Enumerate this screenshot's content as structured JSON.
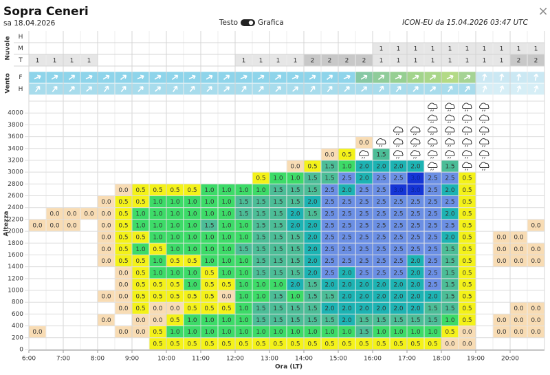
{
  "header": {
    "title": "Sopra Ceneri",
    "date": "sa 18.04.2026",
    "toggle_left": "Testo",
    "toggle_right": "Grafica",
    "source": "ICON-EU da 15.04.2026 03:47 UTC",
    "close": "×"
  },
  "clouds": {
    "label": "Nuvole",
    "colors": [
      "#ffffff",
      "#e6e6e6",
      "#c8c8c8"
    ],
    "rows": [
      {
        "name": "H",
        "values": [
          null,
          null,
          null,
          null,
          null,
          null,
          null,
          null,
          null,
          null,
          null,
          null,
          null,
          null,
          null,
          null,
          null,
          null,
          null,
          null,
          null,
          null,
          null,
          null,
          null,
          null,
          null,
          null,
          null,
          null
        ]
      },
      {
        "name": "M",
        "values": [
          null,
          null,
          null,
          null,
          null,
          null,
          null,
          null,
          null,
          null,
          null,
          null,
          null,
          null,
          null,
          null,
          null,
          null,
          null,
          null,
          1,
          1,
          1,
          1,
          1,
          1,
          1,
          1,
          1,
          1
        ]
      },
      {
        "name": "T",
        "values": [
          1,
          1,
          1,
          1,
          null,
          null,
          null,
          null,
          null,
          null,
          null,
          null,
          1,
          1,
          1,
          1,
          2,
          2,
          2,
          2,
          1,
          1,
          1,
          1,
          1,
          1,
          1,
          1,
          2,
          2
        ]
      }
    ]
  },
  "wind": {
    "label": "Vento",
    "rows": [
      {
        "name": "F"
      },
      {
        "name": "H"
      }
    ]
  },
  "grid": {
    "y_label": "Altezza",
    "x_label": "Ora (LT)",
    "ylim": [
      0,
      4200
    ],
    "yticks": [
      0,
      200,
      400,
      600,
      800,
      1000,
      1200,
      1400,
      1600,
      1800,
      2000,
      2200,
      2400,
      2600,
      2800,
      3000,
      3200,
      3400,
      3600,
      3800,
      4000
    ],
    "xticks": [
      "6:00",
      "7:00",
      "8:00",
      "9:00",
      "10:00",
      "11:00",
      "12:00",
      "13:00",
      "14:00",
      "15:00",
      "16:00",
      "17:00",
      "18:00",
      "19:00",
      "20:00"
    ],
    "colors": [
      "#f8dcb4",
      "#f4f219",
      "#3ddb68",
      "#4cbd97",
      "#1db3b3",
      "#6b8fe4",
      "#1535d6"
    ],
    "rows": [
      [
        null,
        null,
        null,
        null,
        null,
        null,
        null,
        "0.5",
        "0.5",
        "0.5",
        "0.5",
        "0.5",
        "0.5",
        "0.5",
        "0.5",
        "0.5",
        "0.5",
        "0.5",
        "0.5",
        "0.5",
        "0.5",
        "0.5",
        "0.5",
        "0.5",
        "0.0",
        "0.0",
        null,
        null,
        null,
        null
      ],
      [
        "0.0",
        null,
        null,
        null,
        null,
        "0.0",
        "0.0",
        "0.5",
        "1.0",
        "1.0",
        "1.0",
        "1.0",
        "1.0",
        "1.0",
        "1.0",
        "1.0",
        "1.0",
        "1.0",
        "1.0",
        "1.5",
        "1.0",
        "1.0",
        "1.0",
        "1.0",
        "0.5",
        "0.0",
        null,
        "0.0",
        "0.0",
        "0.0"
      ],
      [
        null,
        null,
        null,
        null,
        "0.0",
        null,
        "0.0",
        "0.0",
        "0.5",
        "1.0",
        "1.0",
        "1.0",
        "1.0",
        "1.5",
        "1.5",
        "1.5",
        "1.5",
        "1.5",
        "2.0",
        "1.5",
        "1.5",
        "1.5",
        "1.5",
        "1.5",
        "1.0",
        "0.5",
        null,
        "0.0",
        "0.0",
        "0.0"
      ],
      [
        null,
        null,
        null,
        null,
        null,
        "0.0",
        "0.5",
        "0.0",
        "0.0",
        "0.5",
        "0.5",
        "0.5",
        "1.0",
        "1.5",
        "1.5",
        "1.5",
        "1.5",
        "2.0",
        "2.0",
        "2.0",
        "2.0",
        "2.0",
        "2.0",
        "1.5",
        "1.5",
        "0.5",
        null,
        null,
        "0.0",
        "0.0"
      ],
      [
        null,
        null,
        null,
        null,
        "0.0",
        "0.0",
        "0.5",
        "0.5",
        "0.5",
        "0.5",
        "0.5",
        "0.0",
        "1.0",
        "1.0",
        "1.5",
        "1.0",
        "1.5",
        "1.5",
        "2.0",
        "2.0",
        "2.0",
        "2.0",
        "2.0",
        "2.0",
        "1.5",
        "0.5",
        null,
        null,
        null,
        null
      ],
      [
        null,
        null,
        null,
        null,
        null,
        "0.0",
        "0.5",
        "0.5",
        "0.5",
        "1.0",
        "0.5",
        "0.5",
        "1.0",
        "1.0",
        "1.0",
        "2.0",
        "1.5",
        "2.0",
        "2.0",
        "2.0",
        "2.0",
        "2.0",
        "2.0",
        "2.5",
        "1.5",
        "0.5",
        null,
        null,
        null,
        null
      ],
      [
        null,
        null,
        null,
        null,
        null,
        "0.0",
        "0.5",
        "1.0",
        "1.0",
        "1.0",
        "0.5",
        "1.0",
        "1.0",
        "1.5",
        "1.5",
        "1.5",
        "2.0",
        "2.5",
        "2.0",
        "2.5",
        "2.5",
        "2.5",
        "2.0",
        "2.5",
        "1.5",
        "0.5",
        null,
        null,
        null,
        null
      ],
      [
        null,
        null,
        null,
        null,
        "0.0",
        "0.5",
        "0.5",
        "1.0",
        "0.5",
        "0.5",
        "1.0",
        "1.0",
        "1.0",
        "1.5",
        "1.5",
        "1.5",
        "2.0",
        "2.5",
        "2.5",
        "2.5",
        "2.5",
        "2.5",
        "2.0",
        "2.5",
        "1.5",
        "0.5",
        null,
        "0.0",
        "0.0",
        "0.0"
      ],
      [
        null,
        null,
        null,
        null,
        "0.0",
        "0.5",
        "1.0",
        "0.5",
        "1.0",
        "1.0",
        "1.0",
        "1.0",
        "1.5",
        "1.5",
        "1.5",
        "1.5",
        "2.0",
        "2.5",
        "2.5",
        "2.5",
        "2.5",
        "2.5",
        "2.5",
        "2.5",
        "1.5",
        "0.5",
        null,
        "0.0",
        "0.0",
        "0.0"
      ],
      [
        null,
        null,
        null,
        null,
        "0.0",
        "0.5",
        "0.5",
        "1.0",
        "1.0",
        "1.0",
        "1.0",
        "1.0",
        "1.0",
        "1.5",
        "1.5",
        "1.5",
        "2.0",
        "2.5",
        "2.5",
        "2.5",
        "2.5",
        "2.5",
        "2.5",
        "2.5",
        "2.0",
        "0.5",
        null,
        "0.0",
        "0.0",
        null
      ],
      [
        "0.0",
        "0.0",
        "0.0",
        null,
        "0.0",
        "0.5",
        "1.0",
        "1.0",
        "1.0",
        "1.0",
        "1.5",
        "1.0",
        "1.0",
        "1.5",
        "1.5",
        "2.0",
        "2.0",
        "2.5",
        "2.5",
        "2.5",
        "2.5",
        "2.5",
        "2.5",
        "2.5",
        "2.5",
        "0.5",
        null,
        null,
        null,
        "0.0"
      ],
      [
        null,
        "0.0",
        "0.0",
        "0.0",
        "0.0",
        "0.5",
        "1.0",
        "1.0",
        "1.0",
        "1.0",
        "1.0",
        "1.0",
        "1.5",
        "1.5",
        "1.5",
        "2.0",
        "1.5",
        "2.5",
        "2.5",
        "2.5",
        "2.5",
        "2.5",
        "2.5",
        "2.5",
        "2.0",
        "0.5",
        null,
        null,
        null,
        null
      ],
      [
        null,
        null,
        null,
        null,
        "0.0",
        "0.5",
        "0.5",
        "1.0",
        "1.0",
        "1.0",
        "1.0",
        "1.0",
        "1.5",
        "1.5",
        "1.5",
        "1.5",
        "2.0",
        "2.5",
        "2.5",
        "2.5",
        "2.5",
        "2.5",
        "2.5",
        "2.5",
        "2.5",
        "0.5",
        null,
        null,
        null,
        null
      ],
      [
        null,
        null,
        null,
        null,
        null,
        "0.0",
        "0.5",
        "0.5",
        "0.5",
        "0.5",
        "1.0",
        "1.0",
        "1.0",
        "1.0",
        "1.5",
        "1.5",
        "1.5",
        "2.5",
        "2.0",
        "2.5",
        "2.5",
        "3.0",
        "3.0",
        "2.5",
        "2.0",
        "0.5",
        null,
        null,
        null,
        null
      ],
      [
        null,
        null,
        null,
        null,
        null,
        null,
        null,
        null,
        null,
        null,
        null,
        null,
        null,
        "0.5",
        "1.0",
        "1.0",
        "1.5",
        "1.5",
        "2.5",
        "2.0",
        "2.5",
        "2.5",
        "3.0",
        "2.5",
        "2.5",
        "0.5",
        null,
        null,
        null,
        null
      ],
      [
        null,
        null,
        null,
        null,
        null,
        null,
        null,
        null,
        null,
        null,
        null,
        null,
        null,
        null,
        null,
        "0.0",
        "0.5",
        "1.5",
        "1.0",
        "2.0",
        "2.0",
        "2.0",
        "2.0",
        null,
        "1.5",
        null,
        null,
        null,
        null,
        null
      ],
      [
        null,
        null,
        null,
        null,
        null,
        null,
        null,
        null,
        null,
        null,
        null,
        null,
        null,
        null,
        null,
        null,
        null,
        "0.0",
        "0.5",
        null,
        "1.5",
        null,
        null,
        null,
        null,
        null,
        null,
        null,
        null,
        null
      ],
      [
        null,
        null,
        null,
        null,
        null,
        null,
        null,
        null,
        null,
        null,
        null,
        null,
        null,
        null,
        null,
        null,
        null,
        null,
        null,
        "0.0",
        null,
        null,
        null,
        null,
        null,
        null,
        null,
        null,
        null,
        null
      ]
    ]
  }
}
